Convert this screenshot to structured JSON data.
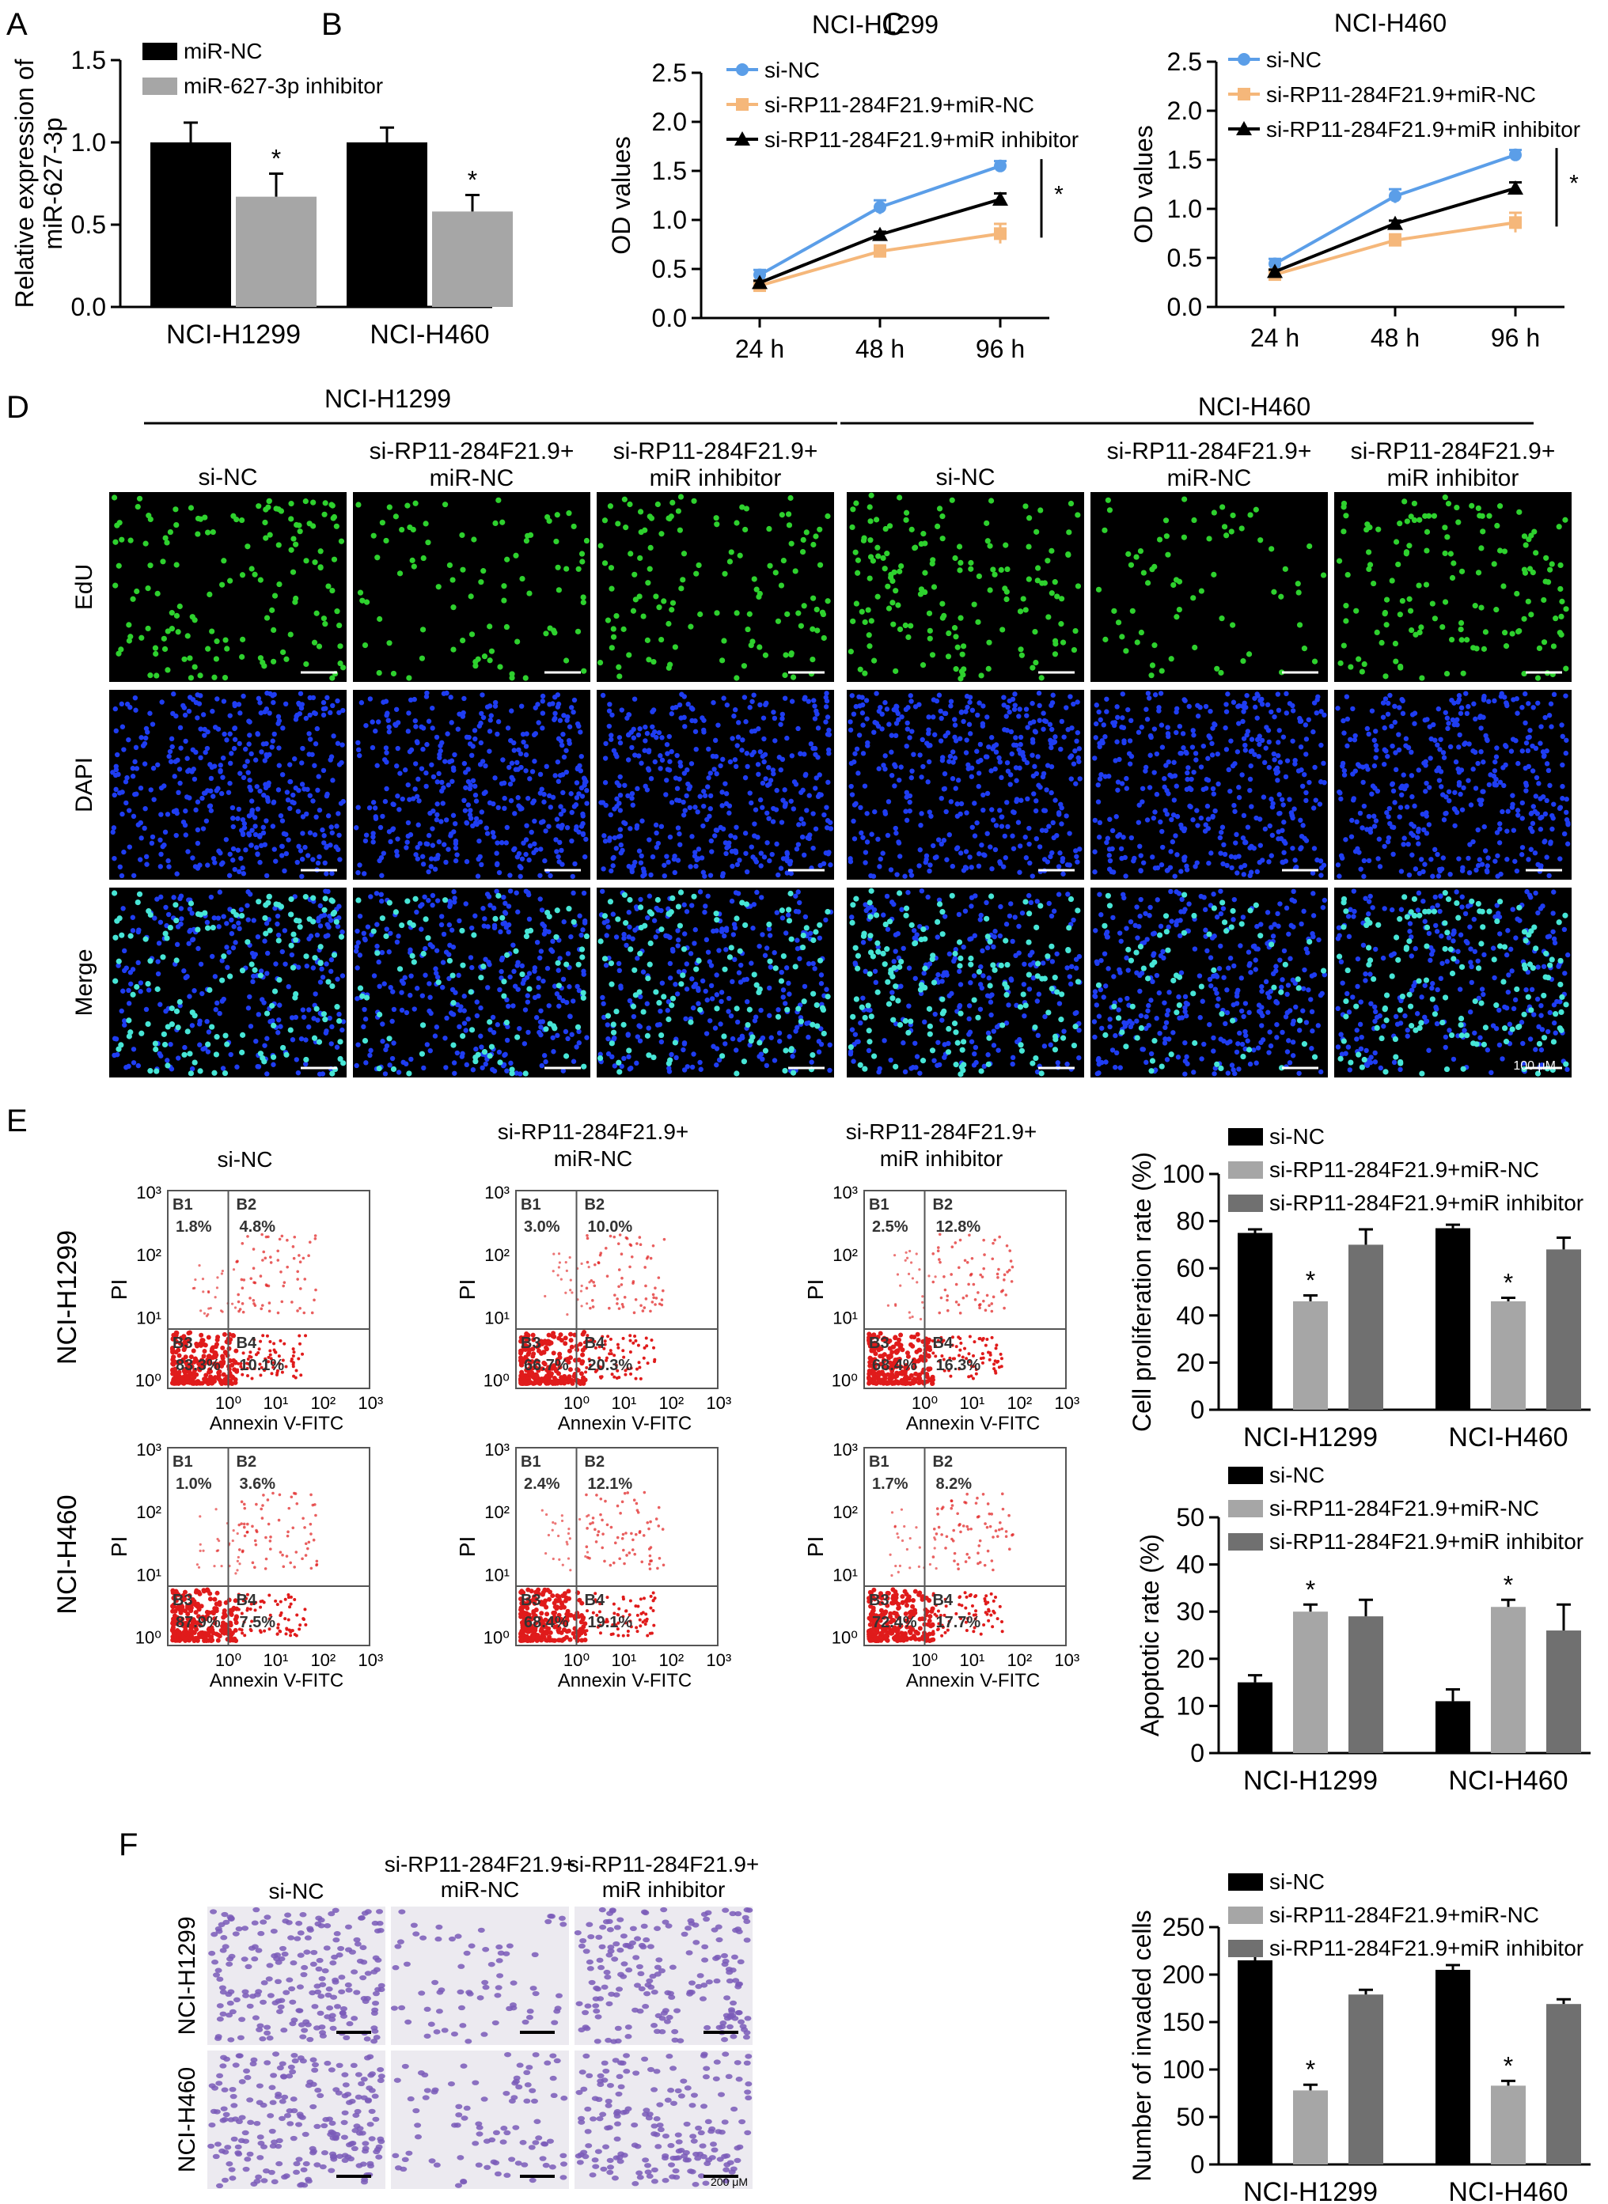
{
  "colors": {
    "black": "#000000",
    "light_gray": "#a6a6a6",
    "dark_gray": "#707070",
    "line_blue": "#5b9ee8",
    "line_orange": "#f5b77a",
    "line_black": "#000000",
    "edu_green": "#2ed12e",
    "dapi_blue": "#1f3df2",
    "merge_cyan": "#47e6d6",
    "flow_red": "#e01b1b",
    "crystal_violet": "#7a5ab8"
  },
  "panel_letters": {
    "A": "A",
    "B": "B",
    "C": "C",
    "D": "D",
    "E": "E",
    "F": "F"
  },
  "panel_D": {
    "groups": [
      "NCI-H1299",
      "NCI-H460"
    ],
    "columns": [
      [
        "si-NC"
      ],
      [
        "si-RP11-284F21.9+",
        "miR-NC"
      ],
      [
        "si-RP11-284F21.9+",
        "miR inhibitor"
      ],
      [
        "si-NC"
      ],
      [
        "si-RP11-284F21.9+",
        "miR-NC"
      ],
      [
        "si-RP11-284F21.9+",
        "miR inhibitor"
      ]
    ],
    "row_labels": [
      "EdU",
      "DAPI",
      "Merge"
    ],
    "scale_label": "100 μM"
  },
  "panel_E_flow": {
    "column_titles": [
      [
        "si-NC"
      ],
      [
        "si-RP11-284F21.9+",
        "miR-NC"
      ],
      [
        "si-RP11-284F21.9+",
        "miR inhibitor"
      ]
    ],
    "row_labels": [
      "NCI-H1299",
      "NCI-H460"
    ],
    "y_axis_label": "PI",
    "x_axis_label": "Annexin V-FITC",
    "y_ticks": [
      "10³",
      "10²",
      "10¹",
      "10⁰"
    ],
    "x_ticks": [
      "10⁰",
      "10¹",
      "10²",
      "10³"
    ],
    "quadrant_names": [
      "B1",
      "B2",
      "B3",
      "B4"
    ],
    "plots": [
      [
        "1.8%",
        "4.8%",
        "83.3%",
        "10.1%"
      ],
      [
        "3.0%",
        "10.0%",
        "66.7%",
        "20.3%"
      ],
      [
        "2.5%",
        "12.8%",
        "68.4%",
        "16.3%"
      ],
      [
        "1.0%",
        "3.6%",
        "87.9%",
        "7.5%"
      ],
      [
        "2.4%",
        "12.1%",
        "68.4%",
        "19.1%"
      ],
      [
        "1.7%",
        "8.2%",
        "72.4%",
        "17.7%"
      ]
    ]
  },
  "panel_F": {
    "column_titles": [
      [
        "si-NC"
      ],
      [
        "si-RP11-284F21.9+",
        "miR-NC"
      ],
      [
        "si-RP11-284F21.9+",
        "miR inhibitor"
      ]
    ],
    "row_labels": [
      "NCI-H1299",
      "NCI-H460"
    ],
    "scale_label": "200 μM"
  },
  "chart_data": [
    {
      "id": "A",
      "type": "bar",
      "categories": [
        "NCI-H1299",
        "NCI-H460"
      ],
      "series": [
        {
          "name": "miR-NC",
          "values": [
            1.0,
            1.0
          ],
          "errors": [
            0.12,
            0.09
          ]
        },
        {
          "name": "miR-627-3p inhibitor",
          "values": [
            0.67,
            0.58
          ],
          "errors": [
            0.14,
            0.1
          ]
        }
      ],
      "significance": [
        false,
        true,
        false,
        true
      ],
      "ylabel": [
        "Relative expression of",
        "miR-627-3p"
      ],
      "ylim": [
        0,
        1.5
      ],
      "yticks": [
        "0.0",
        "0.5",
        "1.0",
        "1.5"
      ],
      "legend": "top-left"
    },
    {
      "id": "B",
      "type": "line",
      "title": "NCI-H1299",
      "x": [
        "24 h",
        "48 h",
        "96 h"
      ],
      "series": [
        {
          "name": "si-NC",
          "values": [
            0.44,
            1.13,
            1.55
          ],
          "errors": [
            0.05,
            0.07,
            0.05
          ]
        },
        {
          "name": "si-RP11-284F21.9+miR-NC",
          "values": [
            0.33,
            0.68,
            0.86
          ],
          "errors": [
            0.03,
            0.06,
            0.1
          ]
        },
        {
          "name": "si-RP11-284F21.9+miR inhibitor",
          "values": [
            0.36,
            0.85,
            1.21
          ],
          "errors": [
            0.02,
            0.03,
            0.06
          ]
        }
      ],
      "ylabel": "OD values",
      "ylim": [
        0,
        2.5
      ],
      "yticks": [
        "0.0",
        "0.5",
        "1.0",
        "1.5",
        "2.0",
        "2.5"
      ],
      "significance_mark": "*",
      "legend": "top-left"
    },
    {
      "id": "C",
      "type": "line",
      "title": "NCI-H460",
      "x": [
        "24 h",
        "48 h",
        "96 h"
      ],
      "series": [
        {
          "name": "si-NC",
          "values": [
            0.44,
            1.13,
            1.55
          ],
          "errors": [
            0.05,
            0.07,
            0.05
          ]
        },
        {
          "name": "si-RP11-284F21.9+miR-NC",
          "values": [
            0.33,
            0.68,
            0.86
          ],
          "errors": [
            0.03,
            0.06,
            0.1
          ]
        },
        {
          "name": "si-RP11-284F21.9+miR inhibitor",
          "values": [
            0.36,
            0.85,
            1.21
          ],
          "errors": [
            0.02,
            0.03,
            0.06
          ]
        }
      ],
      "ylabel": "OD values",
      "ylim": [
        0,
        2.5
      ],
      "yticks": [
        "0.0",
        "0.5",
        "1.0",
        "1.5",
        "2.0",
        "2.5"
      ],
      "significance_mark": "*",
      "legend": "top-left"
    },
    {
      "id": "E-prolif",
      "type": "bar",
      "categories": [
        "NCI-H1299",
        "NCI-H460"
      ],
      "series": [
        {
          "name": "si-NC",
          "values": [
            75,
            77
          ],
          "errors": [
            1.5,
            1.5
          ]
        },
        {
          "name": "si-RP11-284F21.9+miR-NC",
          "values": [
            46,
            46
          ],
          "errors": [
            2.5,
            1.5
          ]
        },
        {
          "name": "si-RP11-284F21.9+miR inhibitor",
          "values": [
            70,
            68
          ],
          "errors": [
            6.5,
            5
          ]
        }
      ],
      "significance": [
        false,
        true,
        false,
        false,
        true,
        false
      ],
      "ylabel": "Cell proliferation rate (%)",
      "ylim": [
        0,
        100
      ],
      "yticks": [
        "0",
        "20",
        "40",
        "60",
        "80",
        "100"
      ],
      "legend": "top-right"
    },
    {
      "id": "E-apop",
      "type": "bar",
      "categories": [
        "NCI-H1299",
        "NCI-H460"
      ],
      "series": [
        {
          "name": "si-NC",
          "values": [
            15,
            11
          ],
          "errors": [
            1.5,
            2.5
          ]
        },
        {
          "name": "si-RP11-284F21.9+miR-NC",
          "values": [
            30,
            31
          ],
          "errors": [
            1.5,
            1.5
          ]
        },
        {
          "name": "si-RP11-284F21.9+miR inhibitor",
          "values": [
            29,
            26
          ],
          "errors": [
            3.5,
            5.5
          ]
        }
      ],
      "significance": [
        false,
        true,
        false,
        false,
        true,
        false
      ],
      "ylabel": "Apoptotic rate (%)",
      "ylim": [
        0,
        50
      ],
      "yticks": [
        "0",
        "10",
        "20",
        "30",
        "40",
        "50"
      ],
      "legend": "top-right"
    },
    {
      "id": "F-invade",
      "type": "bar",
      "categories": [
        "NCI-H1299",
        "NCI-H460"
      ],
      "series": [
        {
          "name": "si-NC",
          "values": [
            215,
            205
          ],
          "errors": [
            5,
            5
          ]
        },
        {
          "name": "si-RP11-284F21.9+miR-NC",
          "values": [
            78,
            83
          ],
          "errors": [
            6,
            5
          ]
        },
        {
          "name": "si-RP11-284F21.9+miR inhibitor",
          "values": [
            179,
            169
          ],
          "errors": [
            5,
            5
          ]
        }
      ],
      "significance": [
        false,
        true,
        false,
        false,
        true,
        false
      ],
      "ylabel": "Number of invaded cells",
      "ylim": [
        0,
        250
      ],
      "yticks": [
        "0",
        "50",
        "100",
        "150",
        "200",
        "250"
      ],
      "legend": "top-right"
    }
  ]
}
